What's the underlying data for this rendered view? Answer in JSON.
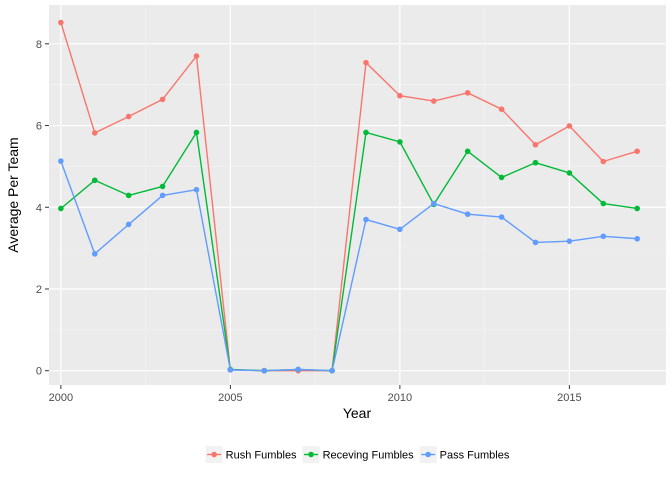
{
  "chart_data": {
    "type": "line",
    "xlabel": "Year",
    "ylabel": "Average Per Team",
    "x": [
      2000,
      2001,
      2002,
      2003,
      2004,
      2005,
      2006,
      2007,
      2008,
      2009,
      2010,
      2011,
      2012,
      2013,
      2014,
      2015,
      2016,
      2017
    ],
    "xlim": [
      1999.65,
      2017.85
    ],
    "ylim": [
      -0.35,
      8.95
    ],
    "x_ticks": [
      "2000",
      "2005",
      "2010",
      "2015"
    ],
    "y_ticks": [
      "0",
      "2",
      "4",
      "6",
      "8"
    ],
    "grid": true,
    "legend_position": "bottom",
    "series": [
      {
        "name": "Rush Fumbles",
        "color": "#F8766D",
        "values": [
          8.52,
          5.82,
          6.22,
          6.64,
          7.7,
          0.02,
          0.0,
          0.0,
          0.0,
          7.54,
          6.73,
          6.6,
          6.8,
          6.4,
          5.53,
          5.99,
          5.12,
          5.37
        ]
      },
      {
        "name": "Receving Fumbles",
        "color": "#00BA38",
        "values": [
          3.97,
          4.66,
          4.29,
          4.51,
          5.83,
          0.03,
          0.0,
          0.03,
          0.0,
          5.83,
          5.6,
          4.07,
          5.37,
          4.73,
          5.09,
          4.84,
          4.09,
          3.97
        ]
      },
      {
        "name": "Pass Fumbles",
        "color": "#619CFF",
        "values": [
          5.13,
          2.86,
          3.58,
          4.29,
          4.43,
          0.02,
          0.0,
          0.03,
          0.0,
          3.7,
          3.46,
          4.09,
          3.83,
          3.76,
          3.14,
          3.17,
          3.29,
          3.23
        ]
      }
    ]
  }
}
